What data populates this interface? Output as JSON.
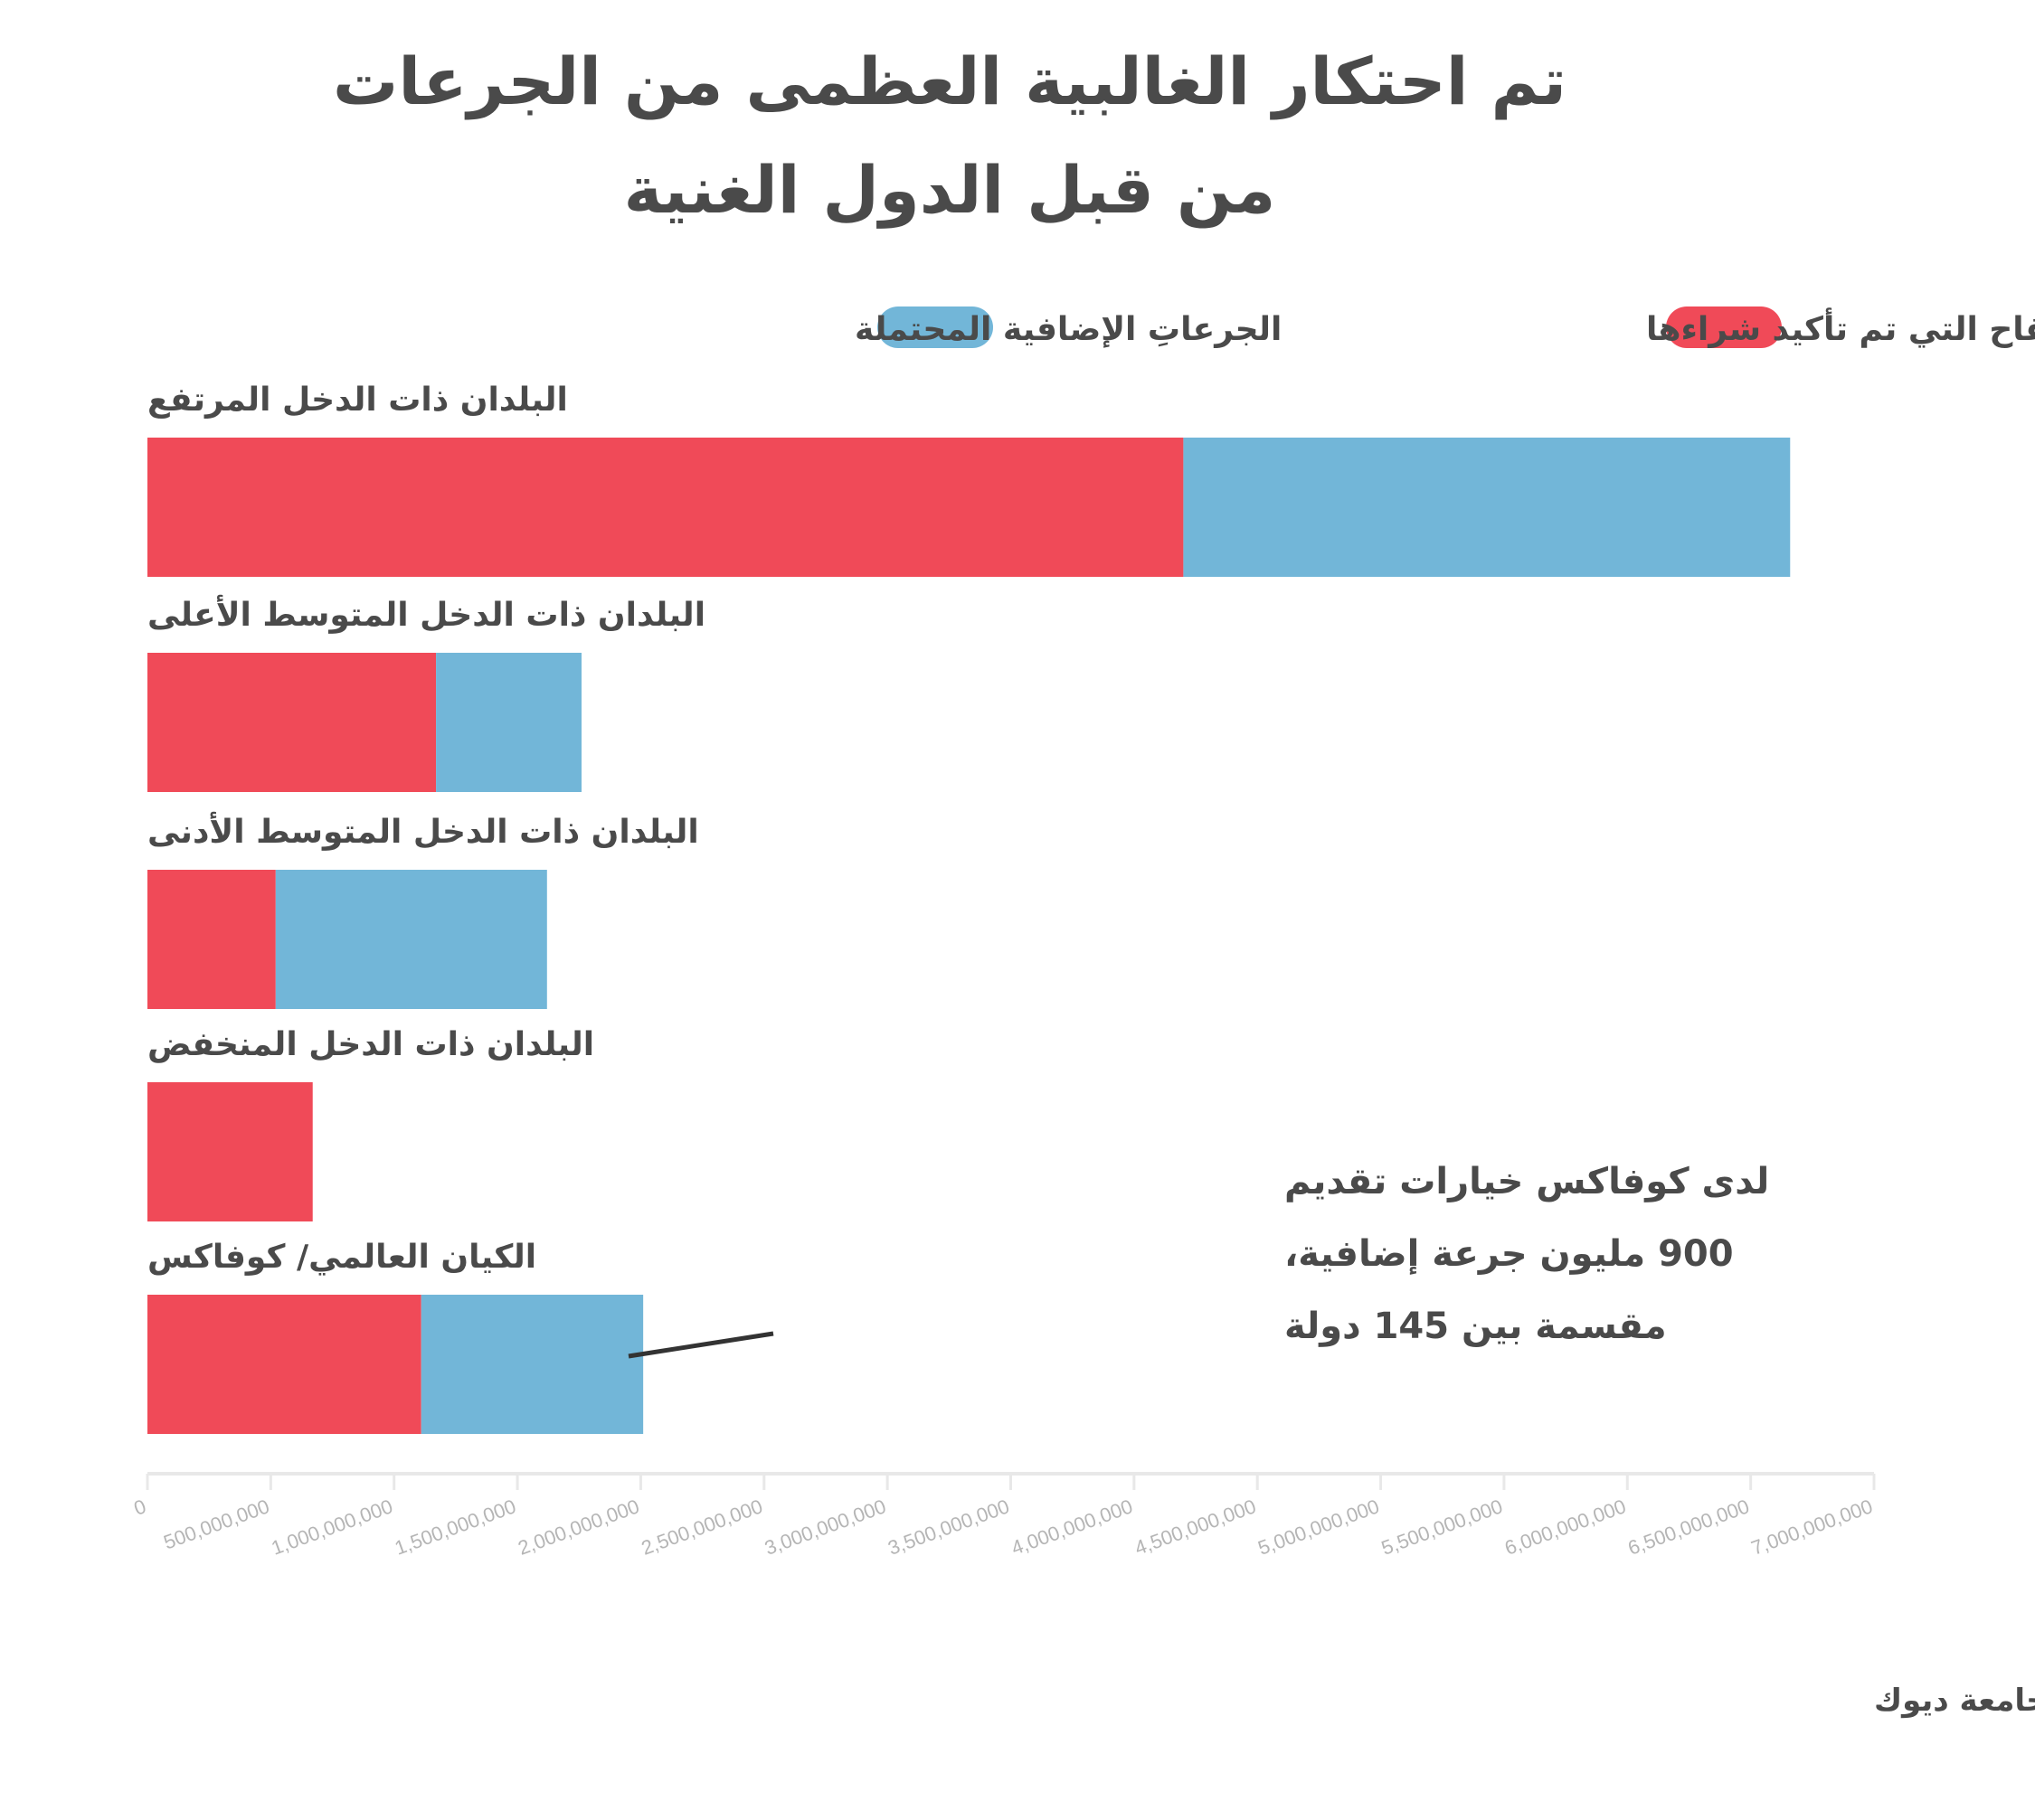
{
  "chart_data": {
    "type": "bar",
    "orientation": "horizontal",
    "stacked": true,
    "title_lines": [
      "تم احتكار الغالبية العظمى من الجرعات",
      "من قبل الدول الغنية"
    ],
    "categories": [
      "البلدان ذات الدخل المرتفع",
      "البلدان ذات الدخل المتوسط الأعلى",
      "البلدان ذات الدخل المتوسط الأدنى",
      "البلدان ذات الدخل المنخفض",
      "الكيان العالمي/ كوفاكس"
    ],
    "series": [
      {
        "name": "جرعات اللقاح التي تم تأكيد شراءها",
        "color": "#f04a58",
        "values": [
          4200000000,
          1170000000,
          520000000,
          670000000,
          1110000000
        ]
      },
      {
        "name": "الجرعاتِ الإضافية المحتملة",
        "color": "#72b6d8",
        "values": [
          2460000000,
          590000000,
          1100000000,
          0,
          900000000
        ]
      }
    ],
    "xlim": [
      0,
      7000000000
    ],
    "x_ticks": [
      {
        "value": 0,
        "label": "0"
      },
      {
        "value": 500000000,
        "label": "500,000,000"
      },
      {
        "value": 1000000000,
        "label": "1,000,000,000"
      },
      {
        "value": 1500000000,
        "label": "1,500,000,000"
      },
      {
        "value": 2000000000,
        "label": "2,000,000,000"
      },
      {
        "value": 2500000000,
        "label": "2,500,000,000"
      },
      {
        "value": 3000000000,
        "label": "3,000,000,000"
      },
      {
        "value": 3500000000,
        "label": "3,500,000,000"
      },
      {
        "value": 4000000000,
        "label": "4,000,000,000"
      },
      {
        "value": 4500000000,
        "label": "4,500,000,000"
      },
      {
        "value": 5000000000,
        "label": "5,000,000,000"
      },
      {
        "value": 5500000000,
        "label": "5,500,000,000"
      },
      {
        "value": 6000000000,
        "label": "6,000,000,000"
      },
      {
        "value": 6500000000,
        "label": "6,500,000,000"
      },
      {
        "value": 7000000000,
        "label": "7,000,000,000"
      }
    ],
    "legend_position": "top",
    "grid": false,
    "annotation": {
      "lines": [
        "لدى كوفاكس خيارات تقديم",
        "900 مليون جرعة إضافية،",
        "مقسمة بين 145 دولة"
      ],
      "target_category": "الكيان العالمي/ كوفاكس"
    },
    "source": "المصدر: جامعة ديوك"
  }
}
